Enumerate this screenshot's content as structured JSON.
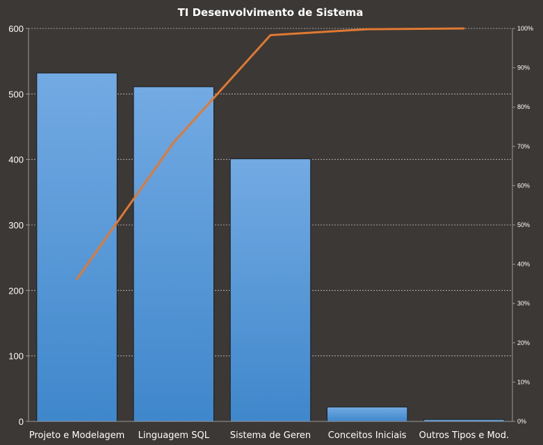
{
  "chart_data": {
    "type": "bar",
    "title": "TI Desenvolvimento  de Sistema",
    "categories": [
      "Projeto e Modelagem",
      "Linguagem SQL",
      "Sistema de Geren",
      "Conceitos Iniciais",
      "Outros Tipos e Mod."
    ],
    "series": [
      {
        "type": "bar",
        "axis": "left",
        "values": [
          532,
          511,
          401,
          22,
          3
        ]
      },
      {
        "type": "line",
        "axis": "right",
        "values": [
          36.2,
          71.0,
          98.3,
          99.8,
          100.0
        ]
      }
    ],
    "ylim": [
      0,
      600
    ],
    "yticks": [
      "0",
      "100",
      "200",
      "300",
      "400",
      "500",
      "600"
    ],
    "y2lim": [
      0,
      100
    ],
    "y2ticks": [
      "0%",
      "10%",
      "20%",
      "30%",
      "40%",
      "50%",
      "60%",
      "70%",
      "80%",
      "90%",
      "100%"
    ],
    "grid": true,
    "legend": "none",
    "colors": {
      "bar_top": "#73aae3",
      "bar_bottom": "#3f87cb",
      "line": "#e07a33",
      "background": "#3b3836"
    }
  }
}
